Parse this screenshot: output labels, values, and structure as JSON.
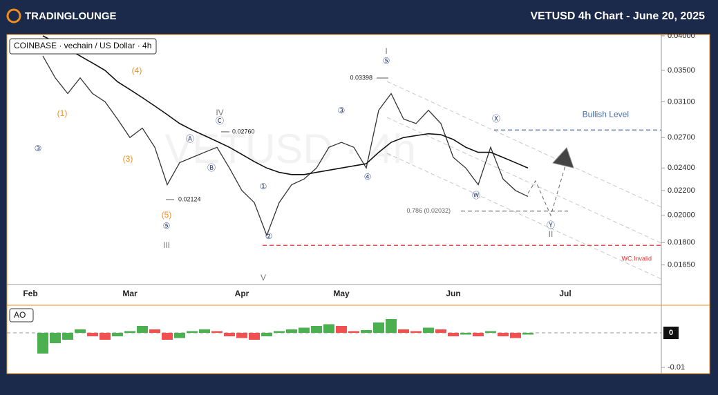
{
  "header": {
    "brand": "TRADINGLOUNGE",
    "title": "VETUSD 4h Chart - June 20, 2025"
  },
  "chart_data": [
    {
      "type": "line",
      "symbol": "COINBASE · vechain / US Dollar · 4h",
      "watermark": "VETUSD · 4h",
      "log_scale": true,
      "categories": [
        null,
        null,
        "Feb",
        null,
        null,
        null,
        null,
        null,
        null,
        null,
        "Mar",
        null,
        null,
        null,
        null,
        null,
        null,
        null,
        null,
        "Apr",
        null,
        null,
        null,
        null,
        null,
        null,
        null,
        "May",
        null,
        null,
        null,
        null,
        null,
        null,
        null,
        null,
        "Jun",
        null,
        null,
        null,
        null,
        null,
        null,
        null,
        null,
        "Jul",
        null,
        null,
        null,
        null,
        null,
        null,
        null
      ],
      "series": [
        {
          "color": "#333333",
          "values": [
            null,
            null,
            null,
            0.037,
            0.034,
            0.032,
            0.034,
            0.032,
            0.031,
            0.029,
            0.027,
            0.028,
            0.026,
            0.0225,
            0.0245,
            0.025,
            0.0255,
            0.026,
            0.024,
            0.022,
            0.021,
            0.0185,
            0.021,
            0.0225,
            0.023,
            0.024,
            0.026,
            0.0265,
            0.026,
            0.024,
            0.03,
            0.032,
            0.029,
            0.0285,
            0.03,
            0.0285,
            0.025,
            0.024,
            0.0225,
            0.026,
            0.023,
            0.022,
            0.0215,
            null,
            null,
            null,
            null,
            null,
            null,
            null,
            null,
            null,
            null
          ]
        },
        {
          "color": "#111111",
          "values": [
            null,
            null,
            null,
            0.04,
            0.039,
            0.038,
            0.037,
            0.036,
            0.035,
            0.0335,
            0.0325,
            0.0315,
            0.0305,
            0.0295,
            0.0285,
            0.0278,
            0.0272,
            0.0266,
            0.026,
            0.0253,
            0.0246,
            0.024,
            0.0236,
            0.0234,
            0.0234,
            0.0236,
            0.0238,
            0.024,
            0.0242,
            0.0244,
            0.0255,
            0.0265,
            0.027,
            0.0272,
            0.0274,
            0.0273,
            0.0268,
            0.026,
            0.0255,
            0.0255,
            0.025,
            0.0245,
            0.024,
            null,
            null,
            null,
            null,
            null,
            null,
            null,
            null,
            null,
            null
          ]
        }
      ],
      "ylim": [
        0.0153,
        0.0402
      ],
      "yticks": [
        {
          "value": 0.04,
          "label": "0.04000"
        },
        {
          "value": 0.035,
          "label": "0.03500"
        },
        {
          "value": 0.031,
          "label": "0.03100"
        },
        {
          "value": 0.027,
          "label": "0.02700"
        },
        {
          "value": 0.024,
          "label": "0.02400"
        },
        {
          "value": 0.022,
          "label": "0.02200"
        },
        {
          "value": 0.02,
          "label": "0.02000"
        },
        {
          "value": 0.018,
          "label": "0.01800"
        },
        {
          "value": 0.0165,
          "label": "0.01650"
        }
      ],
      "price_notes": [
        {
          "value": 0.03398,
          "label": "0.03398"
        },
        {
          "value": 0.0276,
          "label": "0.02760"
        },
        {
          "value": 0.02124,
          "label": "0.02124"
        }
      ],
      "levels": [
        {
          "label": "Bullish Level",
          "value": 0.0278,
          "color": "#4a6fa5"
        },
        {
          "label": "WC.Invalid",
          "value": 0.0178,
          "color": "#e03030"
        },
        {
          "label": "0.786 (0.02032)",
          "value": 0.02032,
          "color": "#666666"
        }
      ],
      "waves": [
        {
          "text": "(4)",
          "color": "#f08c1e"
        },
        {
          "text": "(1)",
          "color": "#f08c1e"
        },
        {
          "text": "(3)",
          "color": "#f08c1e"
        },
        {
          "text": "(5)",
          "color": "#f08c1e"
        },
        {
          "text": "③",
          "color": "#2b3f7a"
        },
        {
          "text": "⑤",
          "color": "#2b3f7a"
        },
        {
          "text": "III",
          "color": "#777777"
        },
        {
          "text": "IV",
          "color": "#777777"
        },
        {
          "text": "Ⓒ",
          "color": "#2b3f7a"
        },
        {
          "text": "Ⓐ",
          "color": "#2b3f7a"
        },
        {
          "text": "Ⓑ",
          "color": "#2b3f7a"
        },
        {
          "text": "①",
          "color": "#2b3f7a"
        },
        {
          "text": "②",
          "color": "#2b3f7a"
        },
        {
          "text": "V",
          "color": "#777777"
        },
        {
          "text": "③",
          "color": "#2b3f7a"
        },
        {
          "text": "④",
          "color": "#2b3f7a"
        },
        {
          "text": "I",
          "color": "#777777"
        },
        {
          "text": "⑤",
          "color": "#2b3f7a"
        },
        {
          "text": "Ⓧ",
          "color": "#2b3f7a"
        },
        {
          "text": "Ⓦ",
          "color": "#2b3f7a"
        },
        {
          "text": "Ⓨ",
          "color": "#2b3f7a"
        },
        {
          "text": "II",
          "color": "#777777"
        }
      ]
    },
    {
      "type": "bar",
      "title": "AO",
      "colors": {
        "up": "#4caf50",
        "down": "#f05050"
      },
      "values": [
        null,
        null,
        null,
        -0.006,
        -0.003,
        -0.002,
        0.001,
        -0.001,
        -0.002,
        -0.001,
        0.0005,
        0.002,
        0.001,
        -0.002,
        -0.0015,
        0.0005,
        0.001,
        0.0005,
        -0.001,
        -0.0015,
        -0.002,
        -0.001,
        0.0005,
        0.001,
        0.0015,
        0.002,
        0.0025,
        0.002,
        0.0005,
        0.0008,
        0.003,
        0.004,
        0.001,
        0.0005,
        0.0015,
        0.001,
        -0.001,
        -0.0005,
        -0.001,
        0.0005,
        -0.001,
        -0.0015,
        -0.0005
      ],
      "ylim": [
        -0.0116,
        0.0076
      ],
      "yticks": [
        0,
        -0.01
      ]
    }
  ]
}
